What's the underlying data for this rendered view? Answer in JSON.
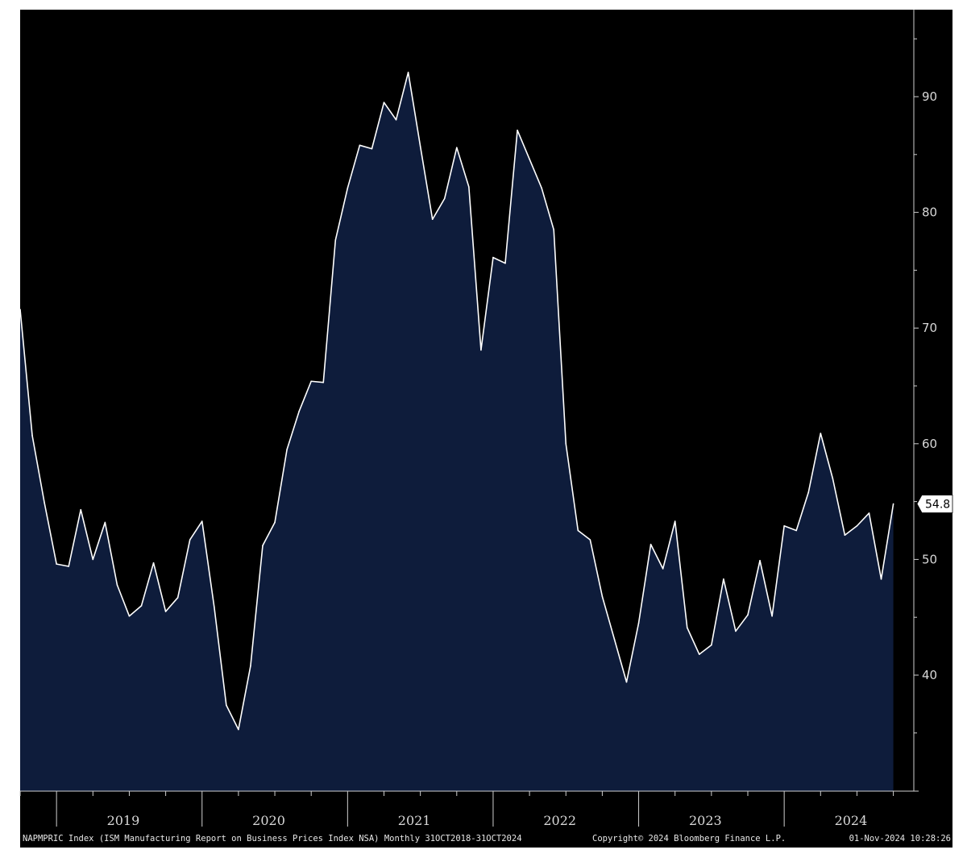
{
  "chart_data": {
    "type": "area",
    "series": [
      {
        "values": [
          71.6,
          60.7,
          54.9,
          49.6,
          49.4,
          54.3,
          50.0,
          53.2,
          47.8,
          45.1,
          46.0,
          49.7,
          45.5,
          46.7,
          51.7,
          53.3,
          45.9,
          37.4,
          35.3,
          40.8,
          51.2,
          53.2,
          59.5,
          62.8,
          65.4,
          65.3,
          77.6,
          82.1,
          85.8,
          85.5,
          89.5,
          88.0,
          92.1,
          85.7,
          79.4,
          81.2,
          85.6,
          82.2,
          68.1,
          76.1,
          75.6,
          87.1,
          84.6,
          82.1,
          78.5,
          60.0,
          52.5,
          51.7,
          46.8,
          43.1,
          39.4,
          44.5,
          51.3,
          49.2,
          53.3,
          44.1,
          41.8,
          42.6,
          48.3,
          43.8,
          45.2,
          49.9,
          45.1,
          52.9,
          52.5,
          55.8,
          60.9,
          57.0,
          52.1,
          52.9,
          54.0,
          48.3,
          54.8
        ]
      }
    ],
    "x_start": "2018-10",
    "x_end": "2024-10",
    "frequency": "monthly",
    "x_tick_labels": [
      "2019",
      "2020",
      "2021",
      "2022",
      "2023",
      "2024"
    ],
    "y_ticks": [
      40,
      50,
      60,
      70,
      80,
      90
    ],
    "ylim": [
      30,
      97
    ],
    "last_value_label": "54.8",
    "y_axis_position": "right",
    "grid": false,
    "colors": {
      "background": "#000000",
      "fill": "#0e1c3b",
      "line": "#ffffff",
      "axis": "#cfcfcf"
    }
  },
  "footer": {
    "left": "NAPMPRIC Index (ISM Manufacturing Report on Business Prices Index NSA)  Monthly 31OCT2018-31OCT2024",
    "center": "Copyright© 2024 Bloomberg Finance L.P.",
    "right": "01-Nov-2024 10:28:26"
  }
}
